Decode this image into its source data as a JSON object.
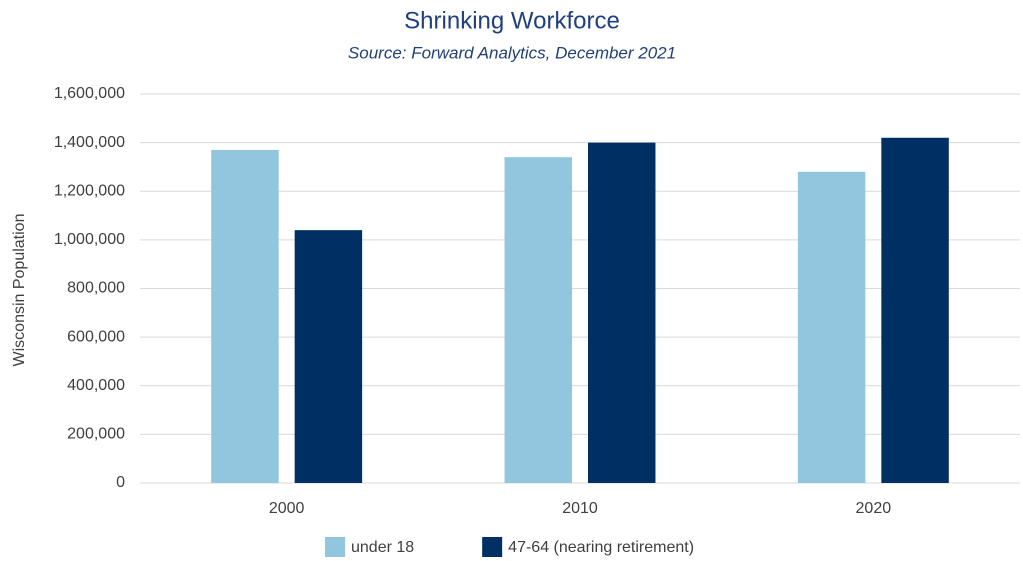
{
  "chart_data": {
    "type": "bar",
    "title": "Shrinking Workforce",
    "subtitle": "Source: Forward Analytics, December 2021",
    "y_label": "Wisconsin Population",
    "categories": [
      "2000",
      "2010",
      "2020"
    ],
    "series": [
      {
        "name": "under 18",
        "color": "#92c5de",
        "values": [
          1370000,
          1340000,
          1280000
        ]
      },
      {
        "name": "47-64 (nearing retirement)",
        "color": "#002f63",
        "values": [
          1040000,
          1400000,
          1420000
        ]
      }
    ],
    "ylim": [
      0,
      1600000
    ],
    "yticks": [
      0,
      {
        "value": 200000,
        "label": "200,000"
      },
      {
        "value": 400000,
        "label": "400,000"
      },
      {
        "value": 600000,
        "label": "600,000"
      },
      {
        "value": 800000,
        "label": "800,000"
      },
      {
        "value": 1000000,
        "label": "1,000,000"
      },
      {
        "value": 1200000,
        "label": "1,200,000"
      },
      {
        "value": 1400000,
        "label": "1,400,000"
      },
      {
        "value": 1600000,
        "label": "1,600,000"
      }
    ],
    "grid": true,
    "legend": "bottom"
  }
}
